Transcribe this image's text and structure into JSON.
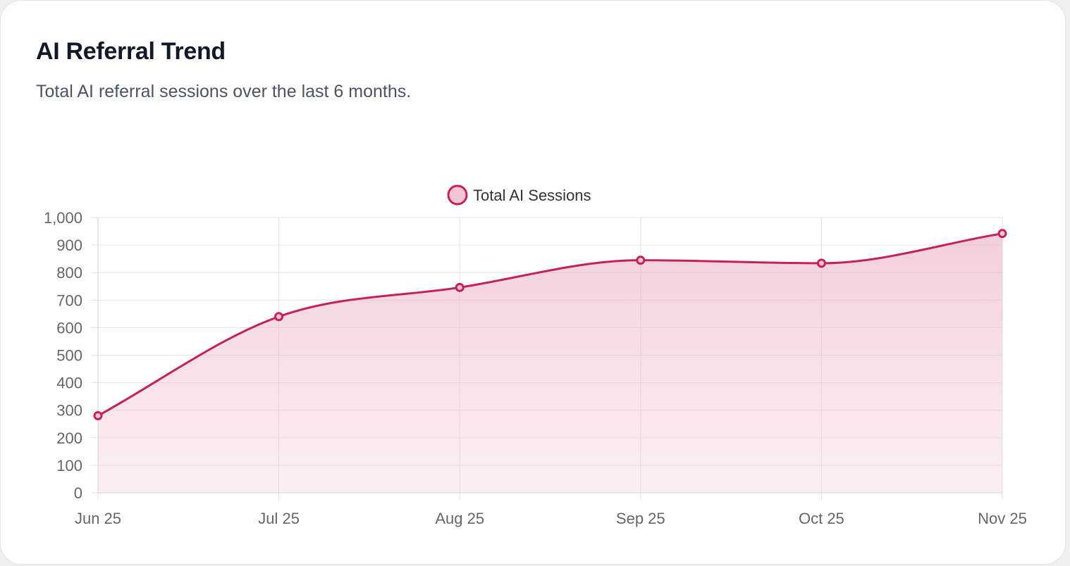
{
  "card": {
    "title": "AI Referral Trend",
    "subtitle": "Total AI referral sessions over the last 6 months."
  },
  "colors": {
    "line": "#c4235a",
    "fill": "#f2c5d1",
    "grid": "#e3e3e3",
    "axis_text": "#666666"
  },
  "chart_data": {
    "type": "area",
    "x": [
      "Jun 25",
      "Jul 25",
      "Aug 25",
      "Sep 25",
      "Oct 25",
      "Nov 25"
    ],
    "series": [
      {
        "name": "Total AI Sessions",
        "values": [
          280,
          640,
          746,
          845,
          834,
          942
        ]
      }
    ],
    "ylim": [
      0,
      1000
    ],
    "yticks": [
      "0",
      "100",
      "200",
      "300",
      "400",
      "500",
      "600",
      "700",
      "800",
      "900",
      "1,000"
    ],
    "ytick_values": [
      0,
      100,
      200,
      300,
      400,
      500,
      600,
      700,
      800,
      900,
      1000
    ],
    "grid": true,
    "legend": "top-center",
    "smooth": true,
    "markers": "circle"
  }
}
